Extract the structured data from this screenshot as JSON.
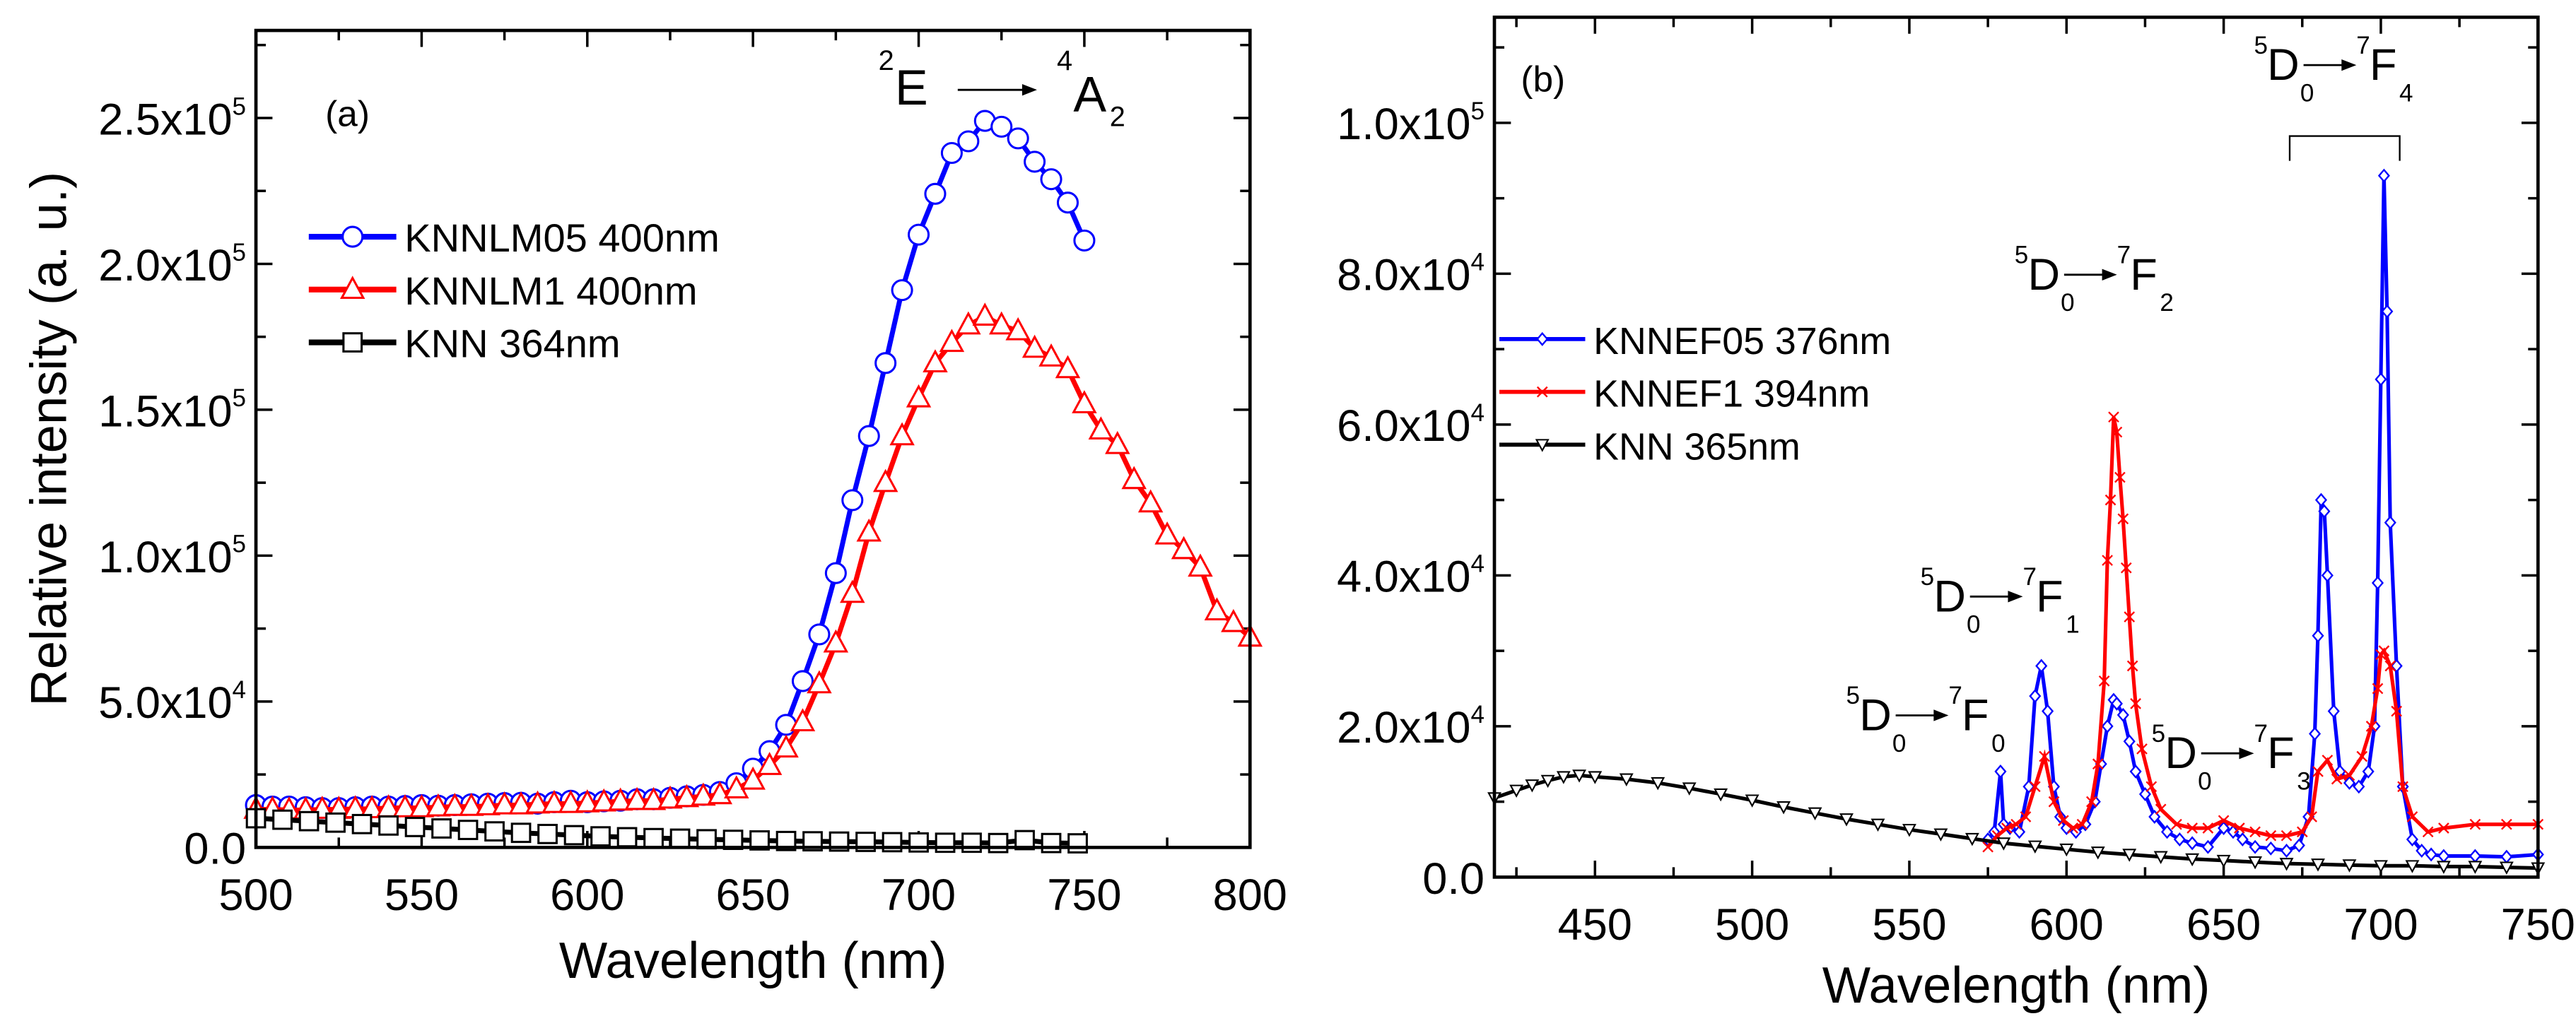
{
  "chart_data": [
    {
      "panel_label": "(a)",
      "type": "line",
      "xlabel": "Wavelength (nm)",
      "ylabel": "Relative intensity (a. u.)",
      "xlim": [
        500,
        800
      ],
      "ylim": [
        0,
        280000
      ],
      "x_ticks": [
        {
          "v": 500,
          "label": "500"
        },
        {
          "v": 550,
          "label": "550"
        },
        {
          "v": 600,
          "label": "600"
        },
        {
          "v": 650,
          "label": "650"
        },
        {
          "v": 700,
          "label": "700"
        },
        {
          "v": 750,
          "label": "750"
        },
        {
          "v": 800,
          "label": "800"
        }
      ],
      "y_ticks": [
        {
          "v": 0,
          "m": "0.0",
          "e": ""
        },
        {
          "v": 50000,
          "m": "5.0x10",
          "e": "4"
        },
        {
          "v": 100000,
          "m": "1.0x10",
          "e": "5"
        },
        {
          "v": 150000,
          "m": "1.5x10",
          "e": "5"
        },
        {
          "v": 200000,
          "m": "2.0x10",
          "e": "5"
        },
        {
          "v": 250000,
          "m": "2.5x10",
          "e": "5"
        }
      ],
      "annotation": {
        "sup1": "2",
        "main1": "E",
        "sup2": "4",
        "main2": "A",
        "sub2": "2"
      },
      "series": [
        {
          "name": "KNNLM05 400nm",
          "color": "#0000ff",
          "marker": "circle",
          "x": [
            500,
            505,
            510,
            515,
            520,
            525,
            530,
            535,
            540,
            545,
            550,
            555,
            560,
            565,
            570,
            575,
            580,
            585,
            590,
            595,
            600,
            605,
            610,
            615,
            620,
            625,
            630,
            635,
            640,
            645,
            650,
            655,
            660,
            665,
            670,
            675,
            680,
            685,
            690,
            695,
            700,
            705,
            710,
            715,
            720,
            725,
            730,
            735,
            740,
            745,
            750
          ],
          "y": [
            14500,
            14000,
            14000,
            13800,
            13500,
            13500,
            13800,
            14000,
            14000,
            14200,
            14500,
            14300,
            14500,
            14800,
            15000,
            15200,
            15300,
            15000,
            15500,
            16000,
            15500,
            15800,
            16000,
            16500,
            16500,
            17000,
            17500,
            18000,
            19000,
            22000,
            27000,
            33000,
            42000,
            57000,
            73000,
            94000,
            119000,
            141000,
            166000,
            191000,
            210000,
            224000,
            238000,
            242000,
            249000,
            247000,
            243000,
            235000,
            229000,
            221000,
            208000
          ]
        },
        {
          "name": "KNNLM1 400nm",
          "color": "#ff0000",
          "marker": "triangle",
          "x": [
            500,
            505,
            510,
            515,
            520,
            525,
            530,
            535,
            540,
            545,
            550,
            555,
            560,
            565,
            570,
            575,
            580,
            585,
            590,
            595,
            600,
            605,
            610,
            615,
            620,
            625,
            630,
            635,
            640,
            645,
            650,
            655,
            660,
            665,
            670,
            675,
            680,
            685,
            690,
            695,
            700,
            705,
            710,
            715,
            720,
            725,
            730,
            735,
            740,
            745,
            750,
            755,
            760,
            765,
            770,
            775,
            780,
            785,
            790,
            795,
            800
          ],
          "y": [
            13000,
            13000,
            12800,
            12800,
            13000,
            13000,
            13200,
            13200,
            13500,
            13500,
            13500,
            13800,
            14000,
            14000,
            14200,
            14500,
            14500,
            14800,
            15000,
            15000,
            15200,
            15500,
            15800,
            16000,
            16000,
            16500,
            17000,
            17500,
            18000,
            20000,
            23000,
            28000,
            34000,
            43000,
            56000,
            70000,
            87000,
            108000,
            125000,
            141000,
            154000,
            166000,
            173000,
            179000,
            182000,
            179000,
            177000,
            171000,
            168000,
            164000,
            152000,
            143000,
            138000,
            126000,
            118000,
            107000,
            102000,
            96000,
            81000,
            77000,
            72000
          ]
        },
        {
          "name": "KNN 364nm",
          "color": "#000000",
          "marker": "square",
          "x": [
            500,
            508,
            516,
            524,
            532,
            540,
            548,
            556,
            564,
            572,
            580,
            588,
            596,
            604,
            612,
            620,
            628,
            636,
            644,
            652,
            660,
            668,
            676,
            684,
            692,
            700,
            708,
            716,
            724,
            732,
            740,
            748
          ],
          "y": [
            10000,
            9500,
            9000,
            8500,
            8000,
            7500,
            7000,
            6500,
            6000,
            5500,
            5000,
            4600,
            4200,
            3800,
            3500,
            3200,
            3000,
            2800,
            2600,
            2400,
            2200,
            2100,
            2000,
            1900,
            1800,
            1700,
            1600,
            1600,
            1500,
            2500,
            1500,
            1400
          ]
        }
      ],
      "legend_position": "upper-left"
    },
    {
      "panel_label": "(b)",
      "type": "line",
      "xlabel": "Wavelength (nm)",
      "ylabel": "",
      "xlim": [
        418,
        750
      ],
      "ylim": [
        0,
        114000
      ],
      "x_ticks": [
        {
          "v": 450,
          "label": "450"
        },
        {
          "v": 500,
          "label": "500"
        },
        {
          "v": 550,
          "label": "550"
        },
        {
          "v": 600,
          "label": "600"
        },
        {
          "v": 650,
          "label": "650"
        },
        {
          "v": 700,
          "label": "700"
        },
        {
          "v": 750,
          "label": "750"
        }
      ],
      "y_ticks": [
        {
          "v": 0,
          "m": "0.0",
          "e": ""
        },
        {
          "v": 20000,
          "m": "2.0x10",
          "e": "4"
        },
        {
          "v": 40000,
          "m": "4.0x10",
          "e": "4"
        },
        {
          "v": 60000,
          "m": "6.0x10",
          "e": "4"
        },
        {
          "v": 80000,
          "m": "8.0x10",
          "e": "4"
        },
        {
          "v": 100000,
          "m": "1.0x10",
          "e": "5"
        }
      ],
      "annotations": [
        {
          "id": "F4",
          "pre": "5",
          "main1": "D",
          "sub1": "0",
          "sup2": "7",
          "main2": "F",
          "sub2": "4"
        },
        {
          "id": "F2",
          "pre": "5",
          "main1": "D",
          "sub1": "0",
          "sup2": "7",
          "main2": "F",
          "sub2": "2"
        },
        {
          "id": "F1",
          "pre": "5",
          "main1": "D",
          "sub1": "0",
          "sup2": "7",
          "main2": "F",
          "sub2": "1"
        },
        {
          "id": "F0",
          "pre": "5",
          "main1": "D",
          "sub1": "0",
          "sup2": "7",
          "main2": "F",
          "sub2": "0"
        },
        {
          "id": "F3",
          "pre": "5",
          "main1": "D",
          "sub1": "0",
          "sup2": "7",
          "main2": "F",
          "sub2": "3"
        }
      ],
      "series": [
        {
          "name": "KNNEF05 376nm",
          "color": "#0000ff",
          "marker": "diamond",
          "x": [
            575,
            577,
            579,
            580,
            582,
            585,
            588,
            590,
            592,
            594,
            596,
            598,
            600,
            603,
            606,
            609,
            611,
            613,
            615,
            616,
            618,
            620,
            622,
            625,
            628,
            632,
            636,
            640,
            645,
            650,
            653,
            656,
            660,
            665,
            670,
            674,
            677,
            679,
            680,
            681,
            682,
            683,
            685,
            687,
            690,
            693,
            696,
            698,
            699,
            700,
            701,
            702,
            703,
            705,
            707,
            710,
            713,
            716,
            720,
            730,
            740,
            750
          ],
          "y": [
            5000,
            6000,
            14000,
            7000,
            6500,
            6000,
            12000,
            24000,
            28000,
            22000,
            12000,
            8000,
            6500,
            6000,
            7000,
            10000,
            15000,
            20000,
            23500,
            23000,
            21500,
            18000,
            14000,
            11000,
            8000,
            6000,
            5000,
            4500,
            4000,
            6500,
            6000,
            5000,
            4000,
            3800,
            3500,
            4200,
            8000,
            19000,
            32000,
            50000,
            48500,
            40000,
            22000,
            14000,
            12500,
            12000,
            14000,
            20000,
            39000,
            66000,
            93000,
            75000,
            47000,
            28000,
            12000,
            5000,
            3500,
            3000,
            2800,
            2800,
            2700,
            3000
          ]
        },
        {
          "name": "KNNEF1 394nm",
          "color": "#ff0000",
          "marker": "x",
          "x": [
            575,
            578,
            581,
            584,
            587,
            590,
            593,
            596,
            599,
            602,
            605,
            608,
            610,
            612,
            613,
            614,
            615,
            616,
            617,
            618,
            619,
            620,
            621,
            622,
            624,
            627,
            630,
            635,
            640,
            645,
            650,
            655,
            660,
            665,
            670,
            675,
            678,
            680,
            683,
            686,
            690,
            694,
            697,
            699,
            700,
            701,
            703,
            705,
            707,
            710,
            715,
            720,
            730,
            740,
            750
          ],
          "y": [
            4000,
            5500,
            6500,
            7000,
            8000,
            12000,
            16000,
            10000,
            7500,
            6500,
            7000,
            10000,
            15000,
            26000,
            42000,
            50000,
            61000,
            59000,
            53000,
            47500,
            41000,
            34500,
            28000,
            23000,
            17000,
            12000,
            9000,
            7000,
            6500,
            6500,
            7500,
            6500,
            6000,
            5500,
            5500,
            6000,
            8000,
            14000,
            15500,
            13000,
            13500,
            16000,
            20000,
            25000,
            29500,
            30000,
            28000,
            22000,
            12000,
            8000,
            6000,
            6500,
            7000,
            7000,
            7000
          ]
        },
        {
          "name": "KNN 365nm",
          "color": "#000000",
          "marker": "triangle-down",
          "x": [
            418,
            425,
            430,
            435,
            440,
            445,
            450,
            460,
            470,
            480,
            490,
            500,
            510,
            520,
            530,
            540,
            550,
            560,
            570,
            580,
            590,
            600,
            610,
            620,
            630,
            640,
            650,
            660,
            670,
            680,
            690,
            700,
            710,
            720,
            730,
            740,
            750
          ],
          "y": [
            10500,
            11500,
            12200,
            12800,
            13300,
            13500,
            13300,
            13000,
            12500,
            11800,
            11000,
            10200,
            9300,
            8500,
            7700,
            7000,
            6300,
            5700,
            5100,
            4500,
            4100,
            3700,
            3300,
            3000,
            2700,
            2400,
            2200,
            2000,
            1800,
            1700,
            1600,
            1500,
            1500,
            1400,
            1400,
            1300,
            1200
          ]
        }
      ],
      "legend_position": "middle-left"
    }
  ]
}
